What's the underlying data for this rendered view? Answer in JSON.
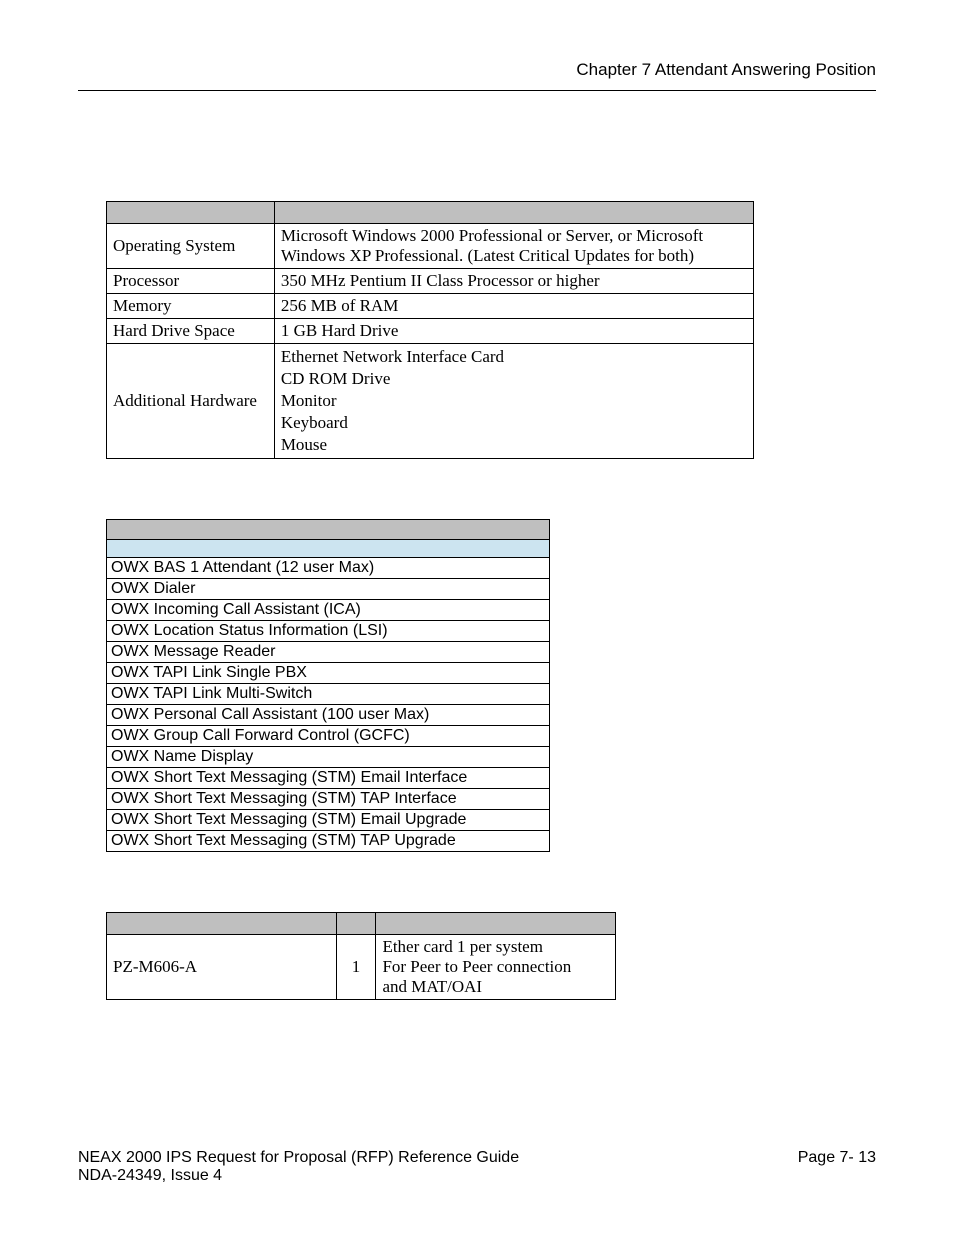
{
  "header": {
    "chapter": "Chapter 7   Attendant Answering Position"
  },
  "colors": {
    "gray_header": "#bfbfbf",
    "blue_header": "#cce4f0",
    "border": "#000000",
    "background": "#ffffff"
  },
  "table1": {
    "columns": [
      "",
      ""
    ],
    "rows": [
      {
        "label": "Operating System",
        "value": "Microsoft Windows 2000 Professional or Server, or Microsoft Windows XP Professional. (Latest Critical Updates for both)"
      },
      {
        "label": "Processor",
        "value": "350 MHz Pentium II Class Processor or higher"
      },
      {
        "label": "Memory",
        "value": "256 MB of RAM"
      },
      {
        "label": "Hard Drive Space",
        "value": "1 GB Hard Drive"
      },
      {
        "label": "Additional Hardware",
        "value_lines": [
          "Ethernet Network Interface Card",
          "CD ROM Drive",
          "Monitor",
          "Keyboard",
          "Mouse"
        ]
      }
    ]
  },
  "table2": {
    "items": [
      "OWX BAS 1 Attendant (12 user Max)",
      "OWX Dialer",
      "OWX Incoming Call Assistant (ICA)",
      "OWX Location Status Information (LSI)",
      "OWX Message Reader",
      "OWX TAPI Link Single PBX",
      "OWX TAPI Link Multi-Switch",
      "OWX Personal Call Assistant (100 user Max)",
      "OWX Group Call Forward Control (GCFC)",
      "OWX Name Display",
      "OWX Short Text Messaging (STM) Email Interface",
      "OWX Short Text Messaging (STM) TAP Interface",
      "OWX Short Text Messaging (STM) Email Upgrade",
      "OWX Short Text Messaging (STM) TAP Upgrade"
    ]
  },
  "table3": {
    "rows": [
      {
        "part": "PZ-M606-A",
        "qty": "1",
        "desc_lines": [
          "Ether card 1 per system",
          "For Peer to Peer connection",
          "and MAT/OAI"
        ]
      }
    ]
  },
  "footer": {
    "line1": "NEAX 2000 IPS Request for Proposal (RFP) Reference Guide",
    "line2": "NDA-24349, Issue 4",
    "page": "Page 7- 13"
  }
}
